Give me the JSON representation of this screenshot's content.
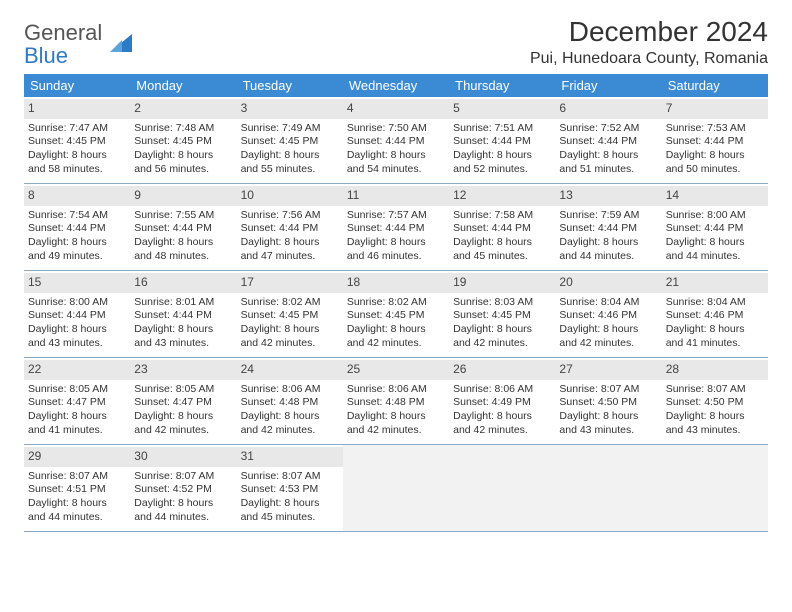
{
  "brand": {
    "part1": "General",
    "part2": "Blue"
  },
  "title": "December 2024",
  "location": "Pui, Hunedoara County, Romania",
  "colors": {
    "header_bg": "#3b8bd4",
    "header_text": "#ffffff",
    "daynum_bg": "#e8e8e8",
    "border": "#8aa9c4",
    "brand_gray": "#555555",
    "brand_blue": "#2d7bc4"
  },
  "day_names": [
    "Sunday",
    "Monday",
    "Tuesday",
    "Wednesday",
    "Thursday",
    "Friday",
    "Saturday"
  ],
  "weeks": [
    [
      {
        "n": "1",
        "sr": "Sunrise: 7:47 AM",
        "ss": "Sunset: 4:45 PM",
        "d1": "Daylight: 8 hours",
        "d2": "and 58 minutes."
      },
      {
        "n": "2",
        "sr": "Sunrise: 7:48 AM",
        "ss": "Sunset: 4:45 PM",
        "d1": "Daylight: 8 hours",
        "d2": "and 56 minutes."
      },
      {
        "n": "3",
        "sr": "Sunrise: 7:49 AM",
        "ss": "Sunset: 4:45 PM",
        "d1": "Daylight: 8 hours",
        "d2": "and 55 minutes."
      },
      {
        "n": "4",
        "sr": "Sunrise: 7:50 AM",
        "ss": "Sunset: 4:44 PM",
        "d1": "Daylight: 8 hours",
        "d2": "and 54 minutes."
      },
      {
        "n": "5",
        "sr": "Sunrise: 7:51 AM",
        "ss": "Sunset: 4:44 PM",
        "d1": "Daylight: 8 hours",
        "d2": "and 52 minutes."
      },
      {
        "n": "6",
        "sr": "Sunrise: 7:52 AM",
        "ss": "Sunset: 4:44 PM",
        "d1": "Daylight: 8 hours",
        "d2": "and 51 minutes."
      },
      {
        "n": "7",
        "sr": "Sunrise: 7:53 AM",
        "ss": "Sunset: 4:44 PM",
        "d1": "Daylight: 8 hours",
        "d2": "and 50 minutes."
      }
    ],
    [
      {
        "n": "8",
        "sr": "Sunrise: 7:54 AM",
        "ss": "Sunset: 4:44 PM",
        "d1": "Daylight: 8 hours",
        "d2": "and 49 minutes."
      },
      {
        "n": "9",
        "sr": "Sunrise: 7:55 AM",
        "ss": "Sunset: 4:44 PM",
        "d1": "Daylight: 8 hours",
        "d2": "and 48 minutes."
      },
      {
        "n": "10",
        "sr": "Sunrise: 7:56 AM",
        "ss": "Sunset: 4:44 PM",
        "d1": "Daylight: 8 hours",
        "d2": "and 47 minutes."
      },
      {
        "n": "11",
        "sr": "Sunrise: 7:57 AM",
        "ss": "Sunset: 4:44 PM",
        "d1": "Daylight: 8 hours",
        "d2": "and 46 minutes."
      },
      {
        "n": "12",
        "sr": "Sunrise: 7:58 AM",
        "ss": "Sunset: 4:44 PM",
        "d1": "Daylight: 8 hours",
        "d2": "and 45 minutes."
      },
      {
        "n": "13",
        "sr": "Sunrise: 7:59 AM",
        "ss": "Sunset: 4:44 PM",
        "d1": "Daylight: 8 hours",
        "d2": "and 44 minutes."
      },
      {
        "n": "14",
        "sr": "Sunrise: 8:00 AM",
        "ss": "Sunset: 4:44 PM",
        "d1": "Daylight: 8 hours",
        "d2": "and 44 minutes."
      }
    ],
    [
      {
        "n": "15",
        "sr": "Sunrise: 8:00 AM",
        "ss": "Sunset: 4:44 PM",
        "d1": "Daylight: 8 hours",
        "d2": "and 43 minutes."
      },
      {
        "n": "16",
        "sr": "Sunrise: 8:01 AM",
        "ss": "Sunset: 4:44 PM",
        "d1": "Daylight: 8 hours",
        "d2": "and 43 minutes."
      },
      {
        "n": "17",
        "sr": "Sunrise: 8:02 AM",
        "ss": "Sunset: 4:45 PM",
        "d1": "Daylight: 8 hours",
        "d2": "and 42 minutes."
      },
      {
        "n": "18",
        "sr": "Sunrise: 8:02 AM",
        "ss": "Sunset: 4:45 PM",
        "d1": "Daylight: 8 hours",
        "d2": "and 42 minutes."
      },
      {
        "n": "19",
        "sr": "Sunrise: 8:03 AM",
        "ss": "Sunset: 4:45 PM",
        "d1": "Daylight: 8 hours",
        "d2": "and 42 minutes."
      },
      {
        "n": "20",
        "sr": "Sunrise: 8:04 AM",
        "ss": "Sunset: 4:46 PM",
        "d1": "Daylight: 8 hours",
        "d2": "and 42 minutes."
      },
      {
        "n": "21",
        "sr": "Sunrise: 8:04 AM",
        "ss": "Sunset: 4:46 PM",
        "d1": "Daylight: 8 hours",
        "d2": "and 41 minutes."
      }
    ],
    [
      {
        "n": "22",
        "sr": "Sunrise: 8:05 AM",
        "ss": "Sunset: 4:47 PM",
        "d1": "Daylight: 8 hours",
        "d2": "and 41 minutes."
      },
      {
        "n": "23",
        "sr": "Sunrise: 8:05 AM",
        "ss": "Sunset: 4:47 PM",
        "d1": "Daylight: 8 hours",
        "d2": "and 42 minutes."
      },
      {
        "n": "24",
        "sr": "Sunrise: 8:06 AM",
        "ss": "Sunset: 4:48 PM",
        "d1": "Daylight: 8 hours",
        "d2": "and 42 minutes."
      },
      {
        "n": "25",
        "sr": "Sunrise: 8:06 AM",
        "ss": "Sunset: 4:48 PM",
        "d1": "Daylight: 8 hours",
        "d2": "and 42 minutes."
      },
      {
        "n": "26",
        "sr": "Sunrise: 8:06 AM",
        "ss": "Sunset: 4:49 PM",
        "d1": "Daylight: 8 hours",
        "d2": "and 42 minutes."
      },
      {
        "n": "27",
        "sr": "Sunrise: 8:07 AM",
        "ss": "Sunset: 4:50 PM",
        "d1": "Daylight: 8 hours",
        "d2": "and 43 minutes."
      },
      {
        "n": "28",
        "sr": "Sunrise: 8:07 AM",
        "ss": "Sunset: 4:50 PM",
        "d1": "Daylight: 8 hours",
        "d2": "and 43 minutes."
      }
    ],
    [
      {
        "n": "29",
        "sr": "Sunrise: 8:07 AM",
        "ss": "Sunset: 4:51 PM",
        "d1": "Daylight: 8 hours",
        "d2": "and 44 minutes."
      },
      {
        "n": "30",
        "sr": "Sunrise: 8:07 AM",
        "ss": "Sunset: 4:52 PM",
        "d1": "Daylight: 8 hours",
        "d2": "and 44 minutes."
      },
      {
        "n": "31",
        "sr": "Sunrise: 8:07 AM",
        "ss": "Sunset: 4:53 PM",
        "d1": "Daylight: 8 hours",
        "d2": "and 45 minutes."
      },
      null,
      null,
      null,
      null
    ]
  ]
}
